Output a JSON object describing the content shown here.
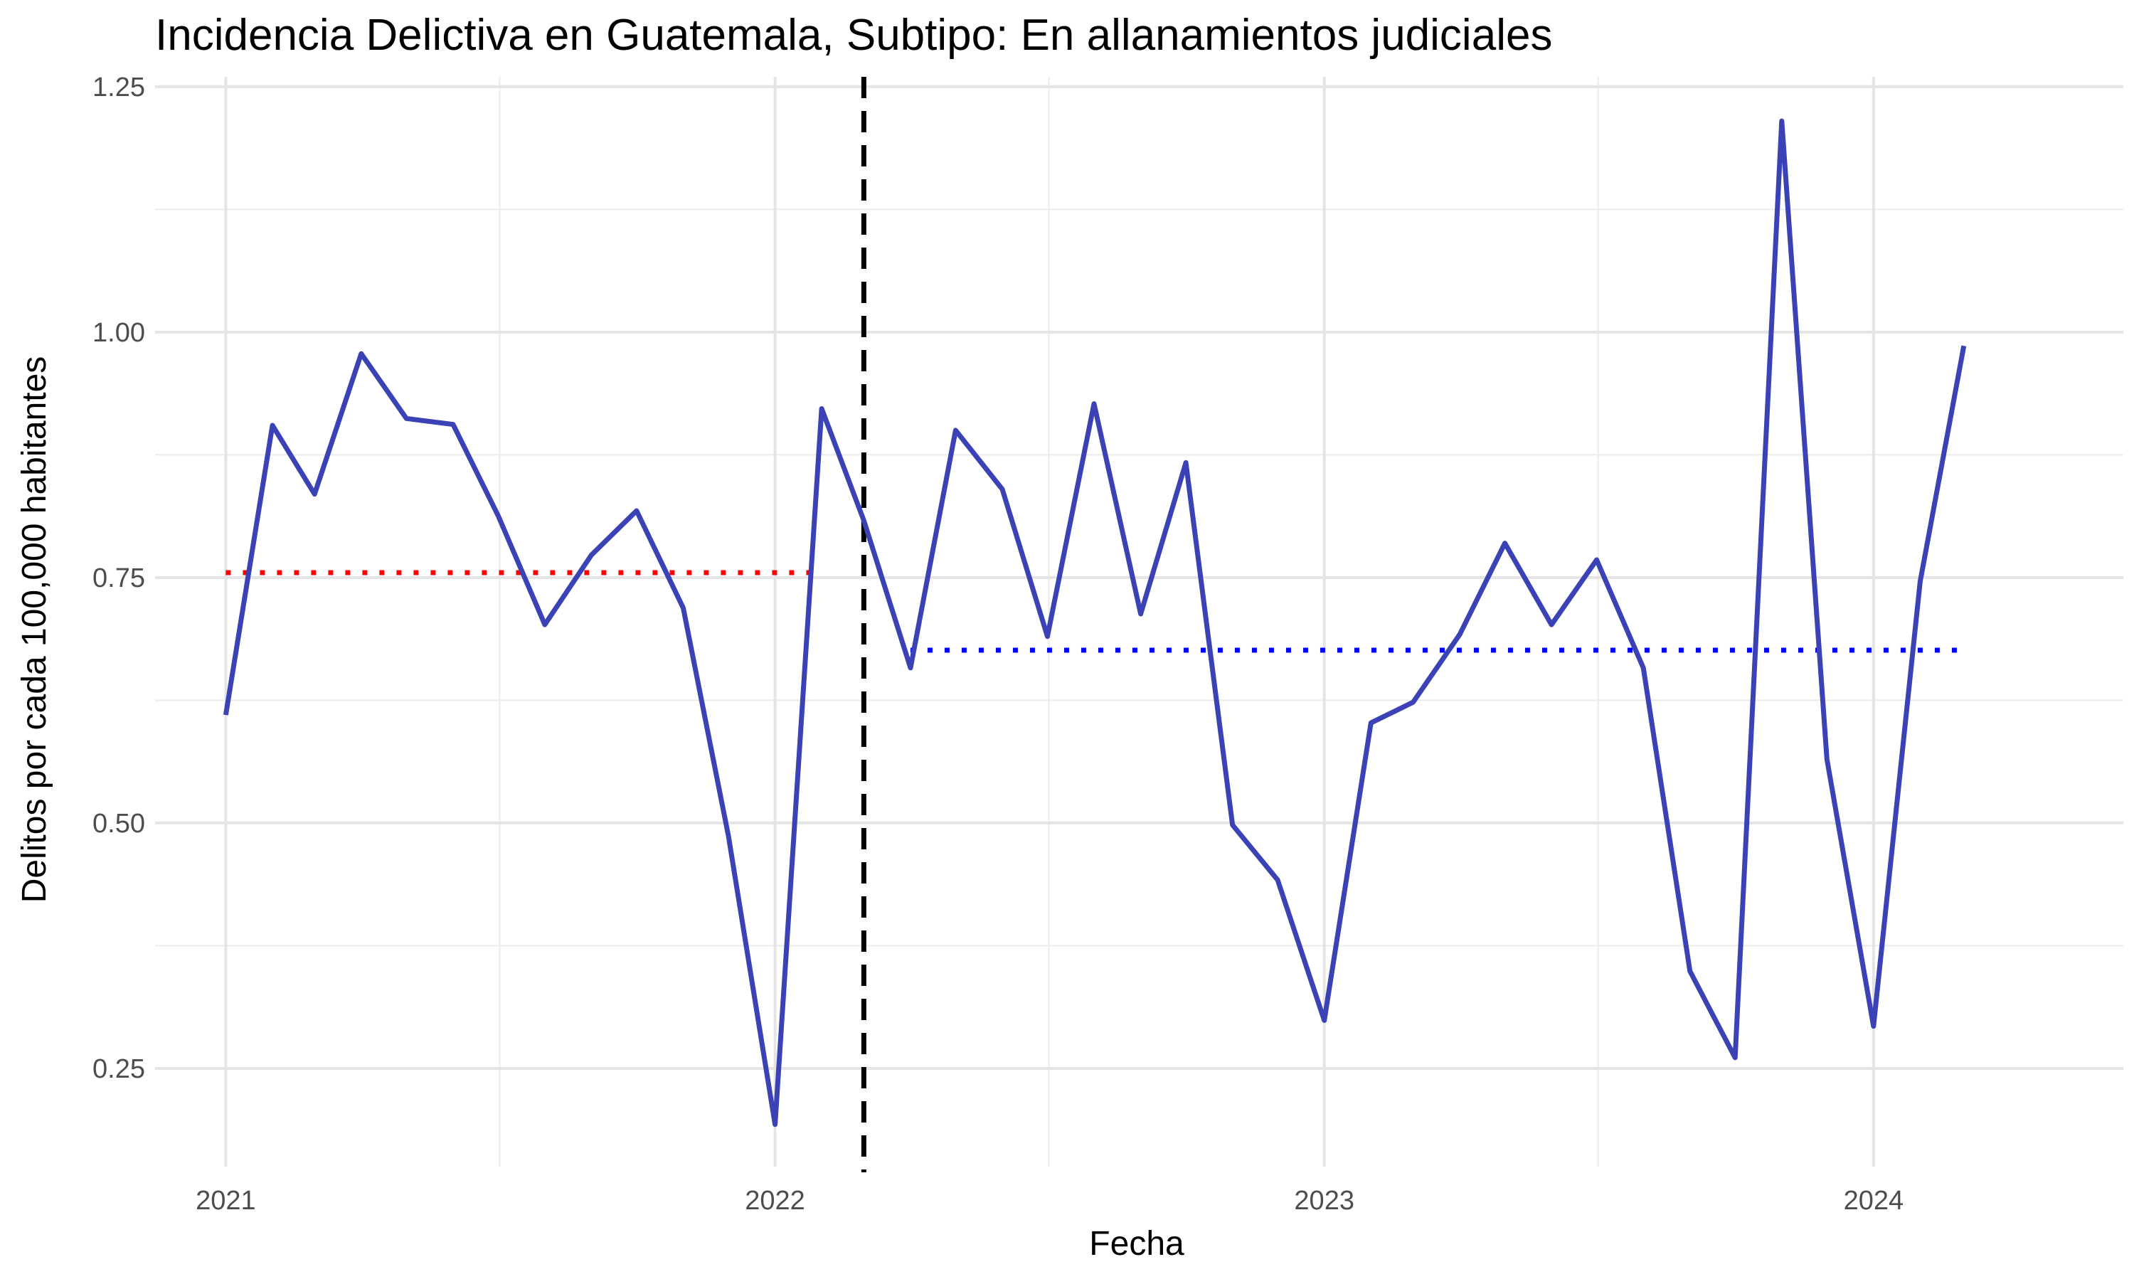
{
  "chart_data": {
    "type": "line",
    "title": "Incidencia Delictiva en Guatemala, Subtipo: En allanamientos judiciales",
    "xlabel": "Fecha",
    "ylabel": "Delitos por cada 100,000 habitantes",
    "x_ticks": [
      "2021",
      "2022",
      "2023",
      "2024"
    ],
    "y_ticks": [
      "0.25",
      "0.50",
      "0.75",
      "1.00",
      "1.25"
    ],
    "ylim": [
      0.15,
      1.26
    ],
    "xlim": [
      "2020-11-15",
      "2024-06-15"
    ],
    "grid": true,
    "legend": "none",
    "x": [
      "2021-01",
      "2021-02",
      "2021-03",
      "2021-04",
      "2021-05",
      "2021-06",
      "2021-07",
      "2021-08",
      "2021-09",
      "2021-10",
      "2021-11",
      "2021-12",
      "2022-01",
      "2022-02",
      "2022-03",
      "2022-04",
      "2022-05",
      "2022-06",
      "2022-07",
      "2022-08",
      "2022-09",
      "2022-10",
      "2022-11",
      "2022-12",
      "2023-01",
      "2023-02",
      "2023-03",
      "2023-04",
      "2023-05",
      "2023-06",
      "2023-07",
      "2023-08",
      "2023-09",
      "2023-10",
      "2023-11",
      "2023-12",
      "2024-01",
      "2024-02",
      "2024-03"
    ],
    "series": [
      {
        "color": "#3a42b5",
        "values": [
          0.61,
          0.905,
          0.835,
          0.978,
          0.912,
          0.906,
          0.813,
          0.702,
          0.773,
          0.818,
          0.719,
          0.487,
          0.193,
          0.922,
          0.808,
          0.658,
          0.9,
          0.84,
          0.69,
          0.927,
          0.713,
          0.867,
          0.498,
          0.442,
          0.299,
          0.602,
          0.623,
          0.692,
          0.785,
          0.702,
          0.768,
          0.658,
          0.349,
          0.261,
          1.215,
          0.565,
          0.293,
          0.746,
          0.986
        ]
      }
    ],
    "reference_lines": [
      {
        "type": "vertical",
        "x": "2022-03",
        "style": "dashed",
        "color": "#000000"
      },
      {
        "type": "horizontal",
        "y": 0.755,
        "from": "2021-01",
        "to": "2022-02",
        "style": "dotted",
        "color": "#ff0000"
      },
      {
        "type": "horizontal",
        "y": 0.676,
        "from": "2022-04",
        "to": "2024-03",
        "style": "dotted",
        "color": "#0000ff"
      }
    ]
  }
}
